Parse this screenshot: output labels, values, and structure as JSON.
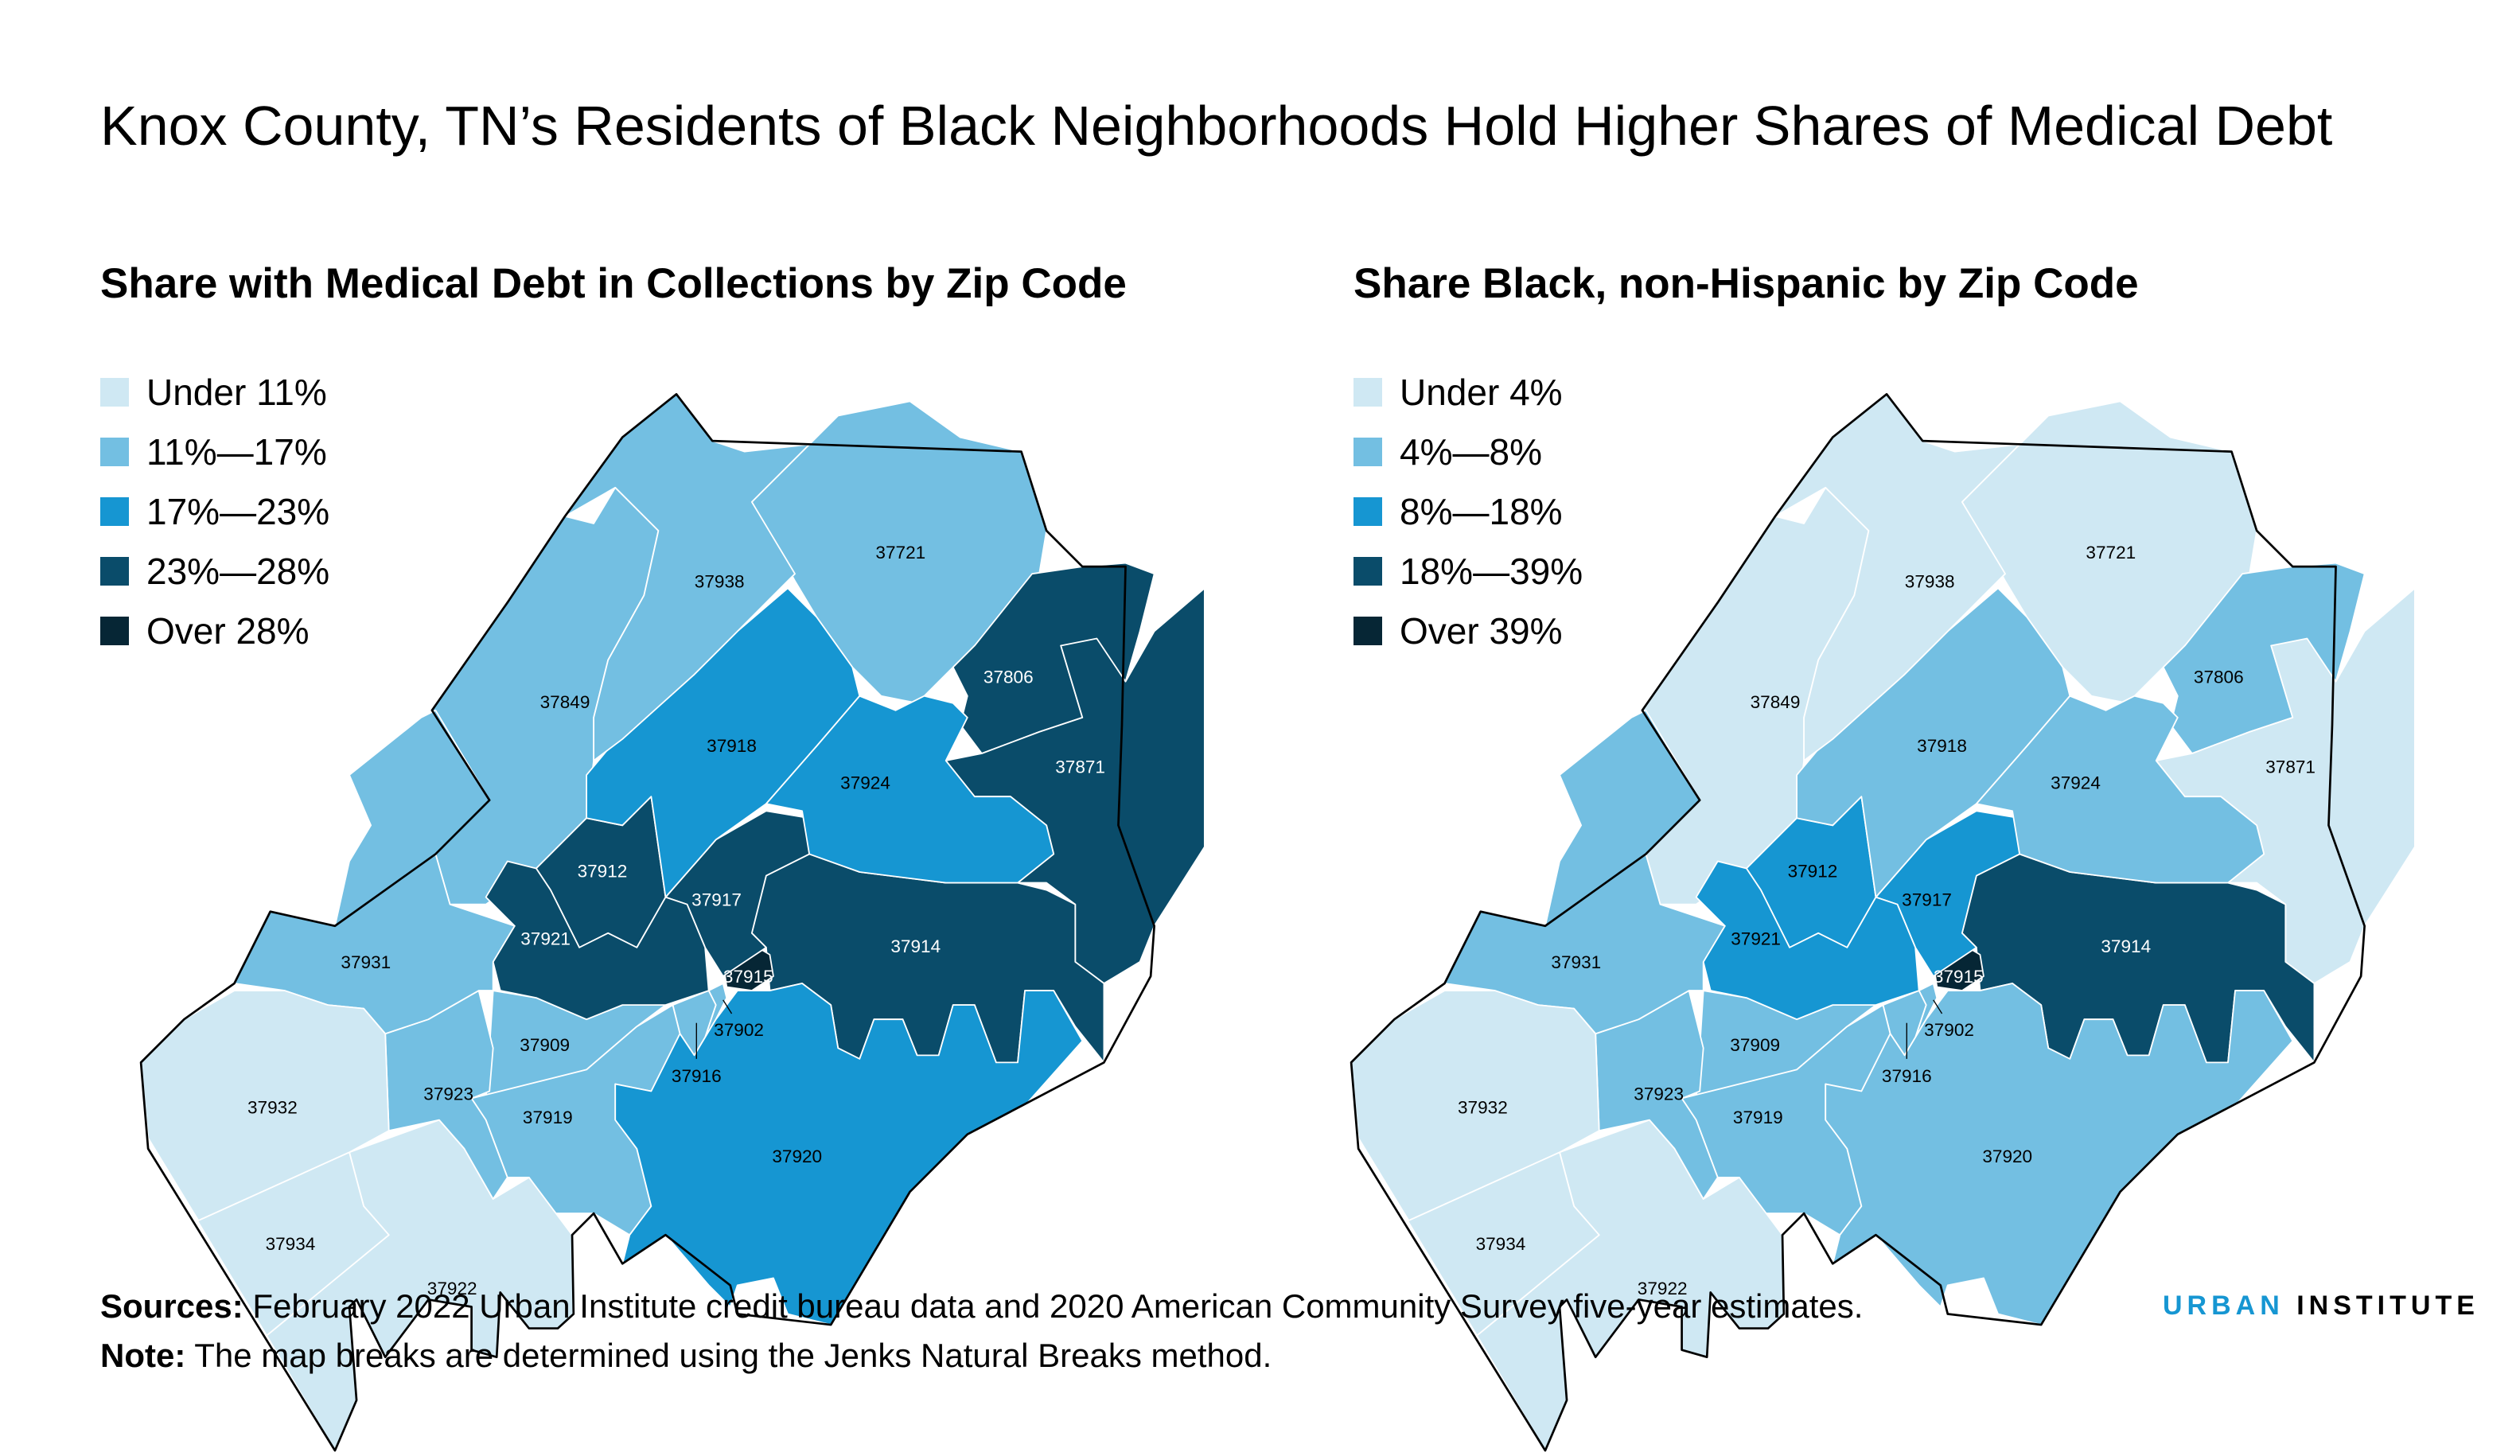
{
  "title": "Knox County, TN’s Residents of Black Neighborhoods Hold Higher Shares of Medical Debt",
  "colors": [
    "#cfe8f3",
    "#73bfe2",
    "#1696d2",
    "#0a4c6a",
    "#062635"
  ],
  "chart_data": [
    {
      "type": "choropleth",
      "title": "Share with Medical Debt in Collections by Zip Code",
      "legend": [
        "Under 11%",
        "11%—17%",
        "17%—23%",
        "23%—28%",
        "Over 28%"
      ],
      "zip_class": {
        "37932": 0,
        "37934": 0,
        "37922": 0,
        "37931": 1,
        "37849": 1,
        "37938": 1,
        "37721": 1,
        "37923": 1,
        "37909": 1,
        "37919": 1,
        "37916": 1,
        "37902": 1,
        "37918": 2,
        "37924": 2,
        "37920": 2,
        "37806": 3,
        "37871": 3,
        "37914": 3,
        "37917": 3,
        "37912": 3,
        "37921": 3,
        "37915": 4
      }
    },
    {
      "type": "choropleth",
      "title": "Share Black, non-Hispanic by Zip Code",
      "legend": [
        "Under 4%",
        "4%—8%",
        "8%—18%",
        "18%—39%",
        "Over 39%"
      ],
      "zip_class": {
        "37932": 0,
        "37934": 0,
        "37922": 0,
        "37849": 0,
        "37938": 0,
        "37721": 0,
        "37871": 0,
        "37931": 1,
        "37918": 1,
        "37924": 1,
        "37806": 1,
        "37923": 1,
        "37909": 1,
        "37919": 1,
        "37920": 1,
        "37916": 1,
        "37902": 1,
        "37912": 2,
        "37921": 2,
        "37917": 2,
        "37914": 3,
        "37915": 4
      }
    }
  ],
  "footer": {
    "sources_label": "Sources:",
    "sources_text": " February 2022 Urban Institute credit bureau data and 2020 American Community Survey five-year estimates.",
    "note_label": "Note:",
    "note_text": " The map breaks are determined using the Jenks Natural Breaks method."
  },
  "logo": {
    "part1": "URBAN",
    "part2": "INSTITUTE",
    "part1_color": "#1696d2"
  }
}
